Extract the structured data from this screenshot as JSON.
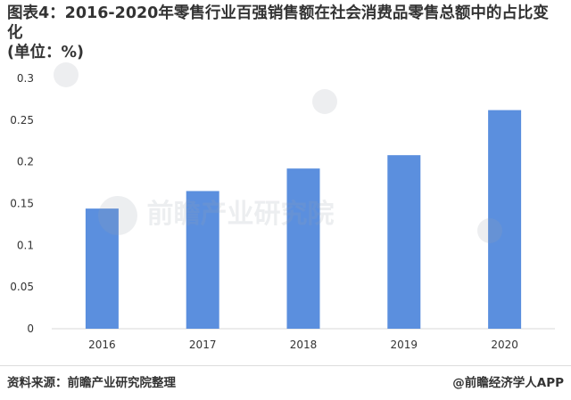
{
  "header": {
    "title_line1": "图表4：2016-2020年零售行业百强销售额在社会消费品零售总额中的占比变化",
    "title_line2": "(单位：%)"
  },
  "watermark": {
    "brand": "前瞻产业研究院"
  },
  "footer": {
    "source": "资料来源：前瞻产业研究院整理",
    "credit": "@前瞻经济学人APP"
  },
  "colors": {
    "bar": "#5b8fde",
    "axis": "#d9d9d9",
    "text": "#333333"
  },
  "chart_data": {
    "type": "bar",
    "categories": [
      "2016",
      "2017",
      "2018",
      "2019",
      "2020"
    ],
    "values": [
      0.144,
      0.165,
      0.192,
      0.208,
      0.262
    ],
    "ylim": [
      0,
      0.3
    ],
    "yticks": [
      "0",
      "0.05",
      "0.1",
      "0.15",
      "0.2",
      "0.25",
      "0.3"
    ],
    "grid": false
  }
}
